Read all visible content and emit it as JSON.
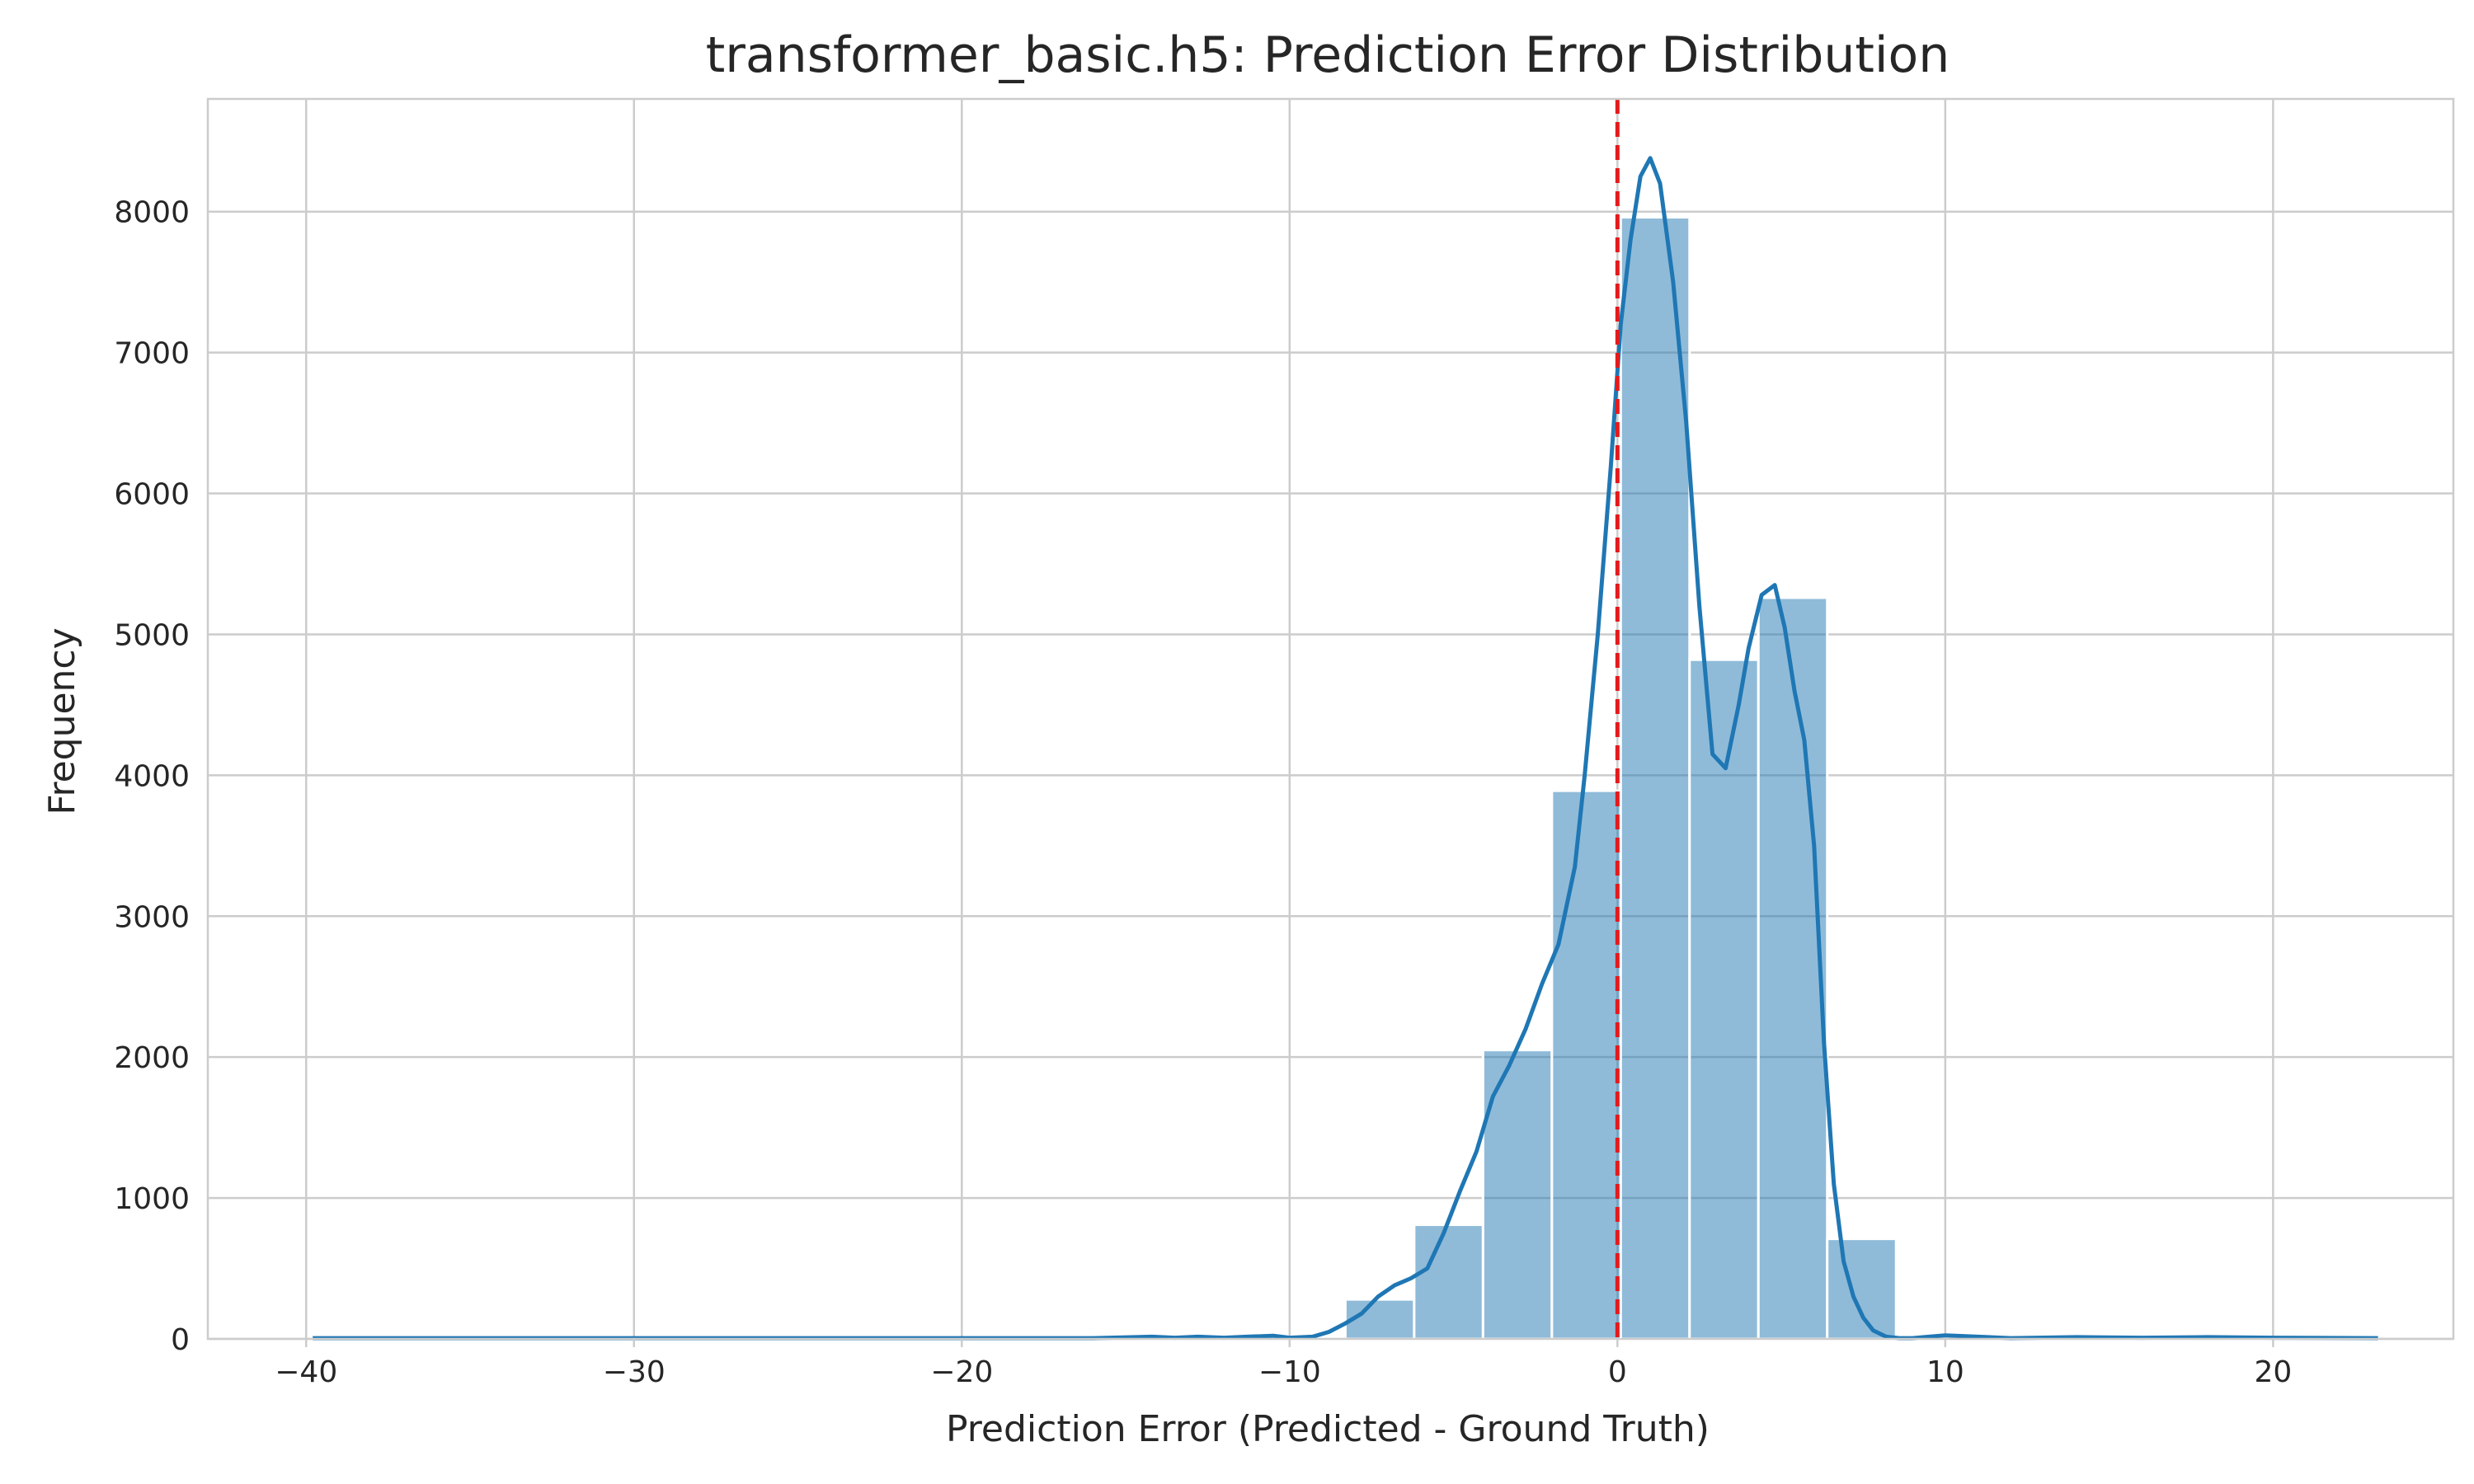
{
  "chart_data": {
    "type": "bar",
    "title": "transformer_basic.h5: Prediction Error Distribution",
    "xlabel": "Prediction Error (Predicted - Ground Truth)",
    "ylabel": "Frequency",
    "xlim": [
      -43,
      25.5
    ],
    "ylim": [
      0,
      8800
    ],
    "xticks": [
      -40,
      -30,
      -20,
      -10,
      0,
      10,
      20
    ],
    "xtick_labels": [
      "−40",
      "−30",
      "−20",
      "−10",
      "0",
      "10",
      "20"
    ],
    "yticks": [
      0,
      1000,
      2000,
      3000,
      4000,
      5000,
      6000,
      7000,
      8000
    ],
    "ytick_labels": [
      "0",
      "1000",
      "2000",
      "3000",
      "4000",
      "5000",
      "6000",
      "7000",
      "8000"
    ],
    "grid": true,
    "bin_edges": [
      -39.8,
      -37.7,
      -35.6,
      -33.5,
      -31.4,
      -29.3,
      -27.2,
      -25.1,
      -23.0,
      -20.9,
      -18.8,
      -16.7,
      -14.6,
      -12.5,
      -10.4,
      -8.3,
      -6.2,
      -4.1,
      -2.0,
      0.1,
      2.2,
      4.3,
      6.4,
      8.5,
      10.6,
      12.7,
      14.8,
      16.9,
      19.0,
      21.1,
      23.2
    ],
    "values": [
      2,
      0,
      0,
      0,
      0,
      0,
      0,
      0,
      0,
      0,
      0,
      0,
      8,
      10,
      15,
      280,
      810,
      2050,
      3890,
      7960,
      4820,
      5260,
      710,
      10,
      12,
      5,
      8,
      5,
      3,
      2
    ],
    "kde": {
      "x": [
        -39.8,
        -36,
        -32,
        -28,
        -24,
        -20,
        -16,
        -14.2,
        -13.5,
        -12.8,
        -12,
        -11.3,
        -10.5,
        -10,
        -9.3,
        -8.8,
        -8.3,
        -7.8,
        -7.3,
        -6.8,
        -6.3,
        -5.8,
        -5.3,
        -4.8,
        -4.3,
        -3.8,
        -3.3,
        -2.8,
        -2.3,
        -1.8,
        -1.3,
        -1.0,
        -0.6,
        -0.2,
        0.1,
        0.4,
        0.7,
        1.0,
        1.3,
        1.7,
        2.1,
        2.5,
        2.9,
        3.3,
        3.7,
        4.0,
        4.4,
        4.8,
        5.1,
        5.4,
        5.7,
        6.0,
        6.3,
        6.6,
        6.9,
        7.2,
        7.5,
        7.8,
        8.2,
        8.6,
        9.0,
        9.5,
        10,
        11,
        12,
        14,
        16,
        18,
        20,
        23.2
      ],
      "y": [
        5,
        5,
        5,
        5,
        5,
        5,
        5,
        15,
        8,
        15,
        8,
        15,
        22,
        8,
        15,
        50,
        110,
        180,
        300,
        380,
        430,
        500,
        750,
        1050,
        1330,
        1720,
        1940,
        2200,
        2520,
        2800,
        3350,
        4000,
        5000,
        6200,
        7200,
        7800,
        8250,
        8380,
        8200,
        7500,
        6500,
        5200,
        4150,
        4050,
        4500,
        4900,
        5280,
        5350,
        5050,
        4600,
        4250,
        3500,
        2100,
        1100,
        550,
        300,
        150,
        60,
        15,
        5,
        5,
        15,
        25,
        15,
        5,
        12,
        8,
        12,
        8,
        5
      ]
    },
    "reference_line": {
      "x": 0,
      "color": "#e41a1c",
      "style": "dashed"
    }
  }
}
